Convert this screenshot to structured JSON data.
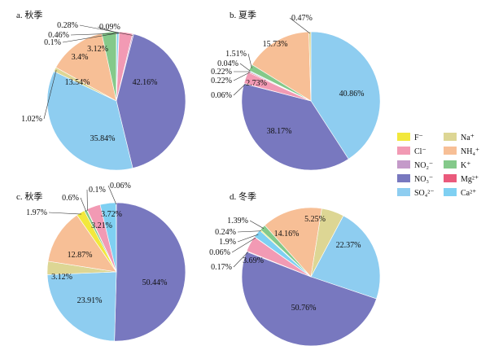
{
  "chart_data": [
    {
      "type": "pie",
      "title": "a. 秋季",
      "slices": [
        {
          "label": "F⁻",
          "value": 0.09,
          "display": "0.09%",
          "color": "#f2e83c"
        },
        {
          "label": "Cl⁻",
          "value": 3.12,
          "display": "3.12%",
          "color": "#f29ab4"
        },
        {
          "label": "NO₂⁻",
          "value": 0.28,
          "display": "0.28%",
          "color": "#c49ac9"
        },
        {
          "label": "NO₃⁻",
          "value": 42.16,
          "display": "42.16%",
          "color": "#7878bf"
        },
        {
          "label": "SO₄²⁻",
          "value": 35.84,
          "display": "35.84%",
          "color": "#8ecdf0"
        },
        {
          "label": "Na⁺",
          "value": 1.02,
          "display": "1.02%",
          "color": "#ddd694"
        },
        {
          "label": "NH₄⁺",
          "value": 13.54,
          "display": "13.54%",
          "color": "#f7bf96"
        },
        {
          "label": "K⁺",
          "value": 3.4,
          "display": "3.4%",
          "color": "#84c98a"
        },
        {
          "label": "Mg²⁺",
          "value": 0.1,
          "display": "0.1%",
          "color": "#ea5a7c"
        },
        {
          "label": "Ca²⁺",
          "value": 0.46,
          "display": "0.46%",
          "color": "#7fd0f2"
        }
      ]
    },
    {
      "type": "pie",
      "title": "b. 夏季",
      "slices": [
        {
          "label": "SO₄²⁻",
          "value": 40.86,
          "display": "40.86%",
          "color": "#8ecdf0"
        },
        {
          "label": "NO₃⁻",
          "value": 38.17,
          "display": "38.17%",
          "color": "#7878bf"
        },
        {
          "label": "NO₂⁻",
          "value": 0.06,
          "display": "0.06%",
          "color": "#c49ac9"
        },
        {
          "label": "Cl⁻",
          "value": 2.73,
          "display": "2.73%",
          "color": "#f29ab4"
        },
        {
          "label": "Mg²⁺",
          "value": 0.22,
          "display": "0.22%",
          "color": "#ea5a7c"
        },
        {
          "label": "Ca²⁺",
          "value": 0.22,
          "display": "0.22%",
          "color": "#7fd0f2"
        },
        {
          "label": "F⁻",
          "value": 0.04,
          "display": "0.04%",
          "color": "#f2e83c"
        },
        {
          "label": "K⁺",
          "value": 1.51,
          "display": "1.51%",
          "color": "#84c98a"
        },
        {
          "label": "NH₄⁺",
          "value": 15.73,
          "display": "15.73%",
          "color": "#f7bf96"
        },
        {
          "label": "Na⁺",
          "value": 0.47,
          "display": "0.47%",
          "color": "#ddd694"
        }
      ]
    },
    {
      "type": "pie",
      "title": "c. 秋季",
      "slices": [
        {
          "label": "NO₃⁻",
          "value": 50.44,
          "display": "50.44%",
          "color": "#7878bf"
        },
        {
          "label": "SO₄²⁻",
          "value": 23.91,
          "display": "23.91%",
          "color": "#8ecdf0"
        },
        {
          "label": "Na⁺",
          "value": 3.12,
          "display": "3.12%",
          "color": "#ddd694"
        },
        {
          "label": "NH₄⁺",
          "value": 12.87,
          "display": "12.87%",
          "color": "#f7bf96"
        },
        {
          "label": "F⁻",
          "value": 1.97,
          "display": "1.97%",
          "color": "#f2e83c"
        },
        {
          "label": "K⁺",
          "value": 0.6,
          "display": "0.6%",
          "color": "#84c98a"
        },
        {
          "label": "Mg²⁺",
          "value": 0.1,
          "display": "0.1%",
          "color": "#ea5a7c"
        },
        {
          "label": "Cl⁻",
          "value": 3.21,
          "display": "3.21%",
          "color": "#f29ab4"
        },
        {
          "label": "Ca²⁺",
          "value": 3.72,
          "display": "3.72%",
          "color": "#7fd0f2"
        },
        {
          "label": "NO₂⁻",
          "value": 0.06,
          "display": "0.06%",
          "color": "#c49ac9"
        }
      ]
    },
    {
      "type": "pie",
      "title": "d. 冬季",
      "slices": [
        {
          "label": "SO₄²⁻",
          "value": 22.37,
          "display": "22.37%",
          "color": "#8ecdf0"
        },
        {
          "label": "NO₃⁻",
          "value": 50.76,
          "display": "50.76%",
          "color": "#7878bf"
        },
        {
          "label": "NO₂⁻",
          "value": 0.17,
          "display": "0.17%",
          "color": "#c49ac9"
        },
        {
          "label": "Cl⁻",
          "value": 3.69,
          "display": "3.69%",
          "color": "#f29ab4"
        },
        {
          "label": "Mg²⁺",
          "value": 0.06,
          "display": "0.06%",
          "color": "#ea5a7c"
        },
        {
          "label": "Ca²⁺",
          "value": 1.9,
          "display": "1.9%",
          "color": "#7fd0f2"
        },
        {
          "label": "F⁻",
          "value": 0.24,
          "display": "0.24%",
          "color": "#f2e83c"
        },
        {
          "label": "K⁺",
          "value": 1.39,
          "display": "1.39%",
          "color": "#84c98a"
        },
        {
          "label": "NH₄⁺",
          "value": 14.16,
          "display": "14.16%",
          "color": "#f7bf96"
        },
        {
          "label": "Na⁺",
          "value": 5.25,
          "display": "5.25%",
          "color": "#ddd694"
        }
      ]
    }
  ],
  "legend": {
    "placement": "right",
    "items": [
      {
        "label": "F⁻",
        "color": "#f2e83c"
      },
      {
        "label": "Na⁺",
        "color": "#ddd694"
      },
      {
        "label": "Cl⁻",
        "color": "#f29ab4"
      },
      {
        "label": "NH₄⁺",
        "color": "#f7bf96"
      },
      {
        "label": "NO₂⁻",
        "color": "#c49ac9"
      },
      {
        "label": "K⁺",
        "color": "#84c98a"
      },
      {
        "label": "NO₃⁻",
        "color": "#7878bf"
      },
      {
        "label": "Mg²⁺",
        "color": "#ea5a7c"
      },
      {
        "label": "SO₄²⁻",
        "color": "#8ecdf0"
      },
      {
        "label": "Ca²⁺",
        "color": "#7fd0f2"
      }
    ]
  }
}
